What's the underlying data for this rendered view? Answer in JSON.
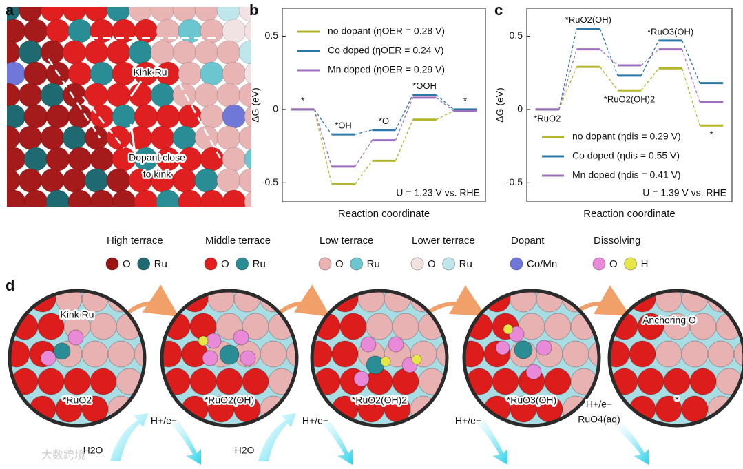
{
  "panel_labels": [
    "a",
    "b",
    "c",
    "d"
  ],
  "panel_a": {
    "kink_label": "Kink Ru",
    "dopant_label": [
      "Dopant close",
      "to kink"
    ]
  },
  "chart_data": [
    {
      "type": "step",
      "ylabel": "ΔG (eV)",
      "xlabel": "Reaction coordinate",
      "categories": [
        "*",
        "*OH",
        "*O",
        "*OOH",
        "*"
      ],
      "annotation": "U = 1.23 V vs. RHE",
      "ylim": [
        -0.63,
        0.69
      ],
      "yticks": [
        -0.5,
        0,
        0.5
      ],
      "legend_position": "upper left",
      "series": [
        {
          "name": "no dopant (ηOER = 0.28 V)",
          "color": "#b3b52b",
          "values": [
            0,
            -0.51,
            -0.35,
            -0.07,
            -0.01
          ]
        },
        {
          "name": "Co doped (ηOER = 0.24 V)",
          "color": "#2b78a6",
          "values": [
            0,
            -0.17,
            -0.14,
            0.1,
            0
          ]
        },
        {
          "name": "Mn doped (ηOER = 0.29 V)",
          "color": "#9d70bf",
          "values": [
            0,
            -0.39,
            -0.21,
            0.08,
            -0.01
          ]
        }
      ]
    },
    {
      "type": "step",
      "ylabel": "ΔG (eV)",
      "xlabel": "Reaction coordinate",
      "categories": [
        "*RuO2",
        "*RuO2(OH)",
        "*RuO2(OH)2",
        "*RuO3(OH)",
        "*"
      ],
      "annotation": "U = 1.39 V vs. RHE",
      "ylim": [
        -0.63,
        0.69
      ],
      "yticks": [
        -0.5,
        0,
        0.5
      ],
      "legend_position": "lower left",
      "series": [
        {
          "name": "no dopant (ηdis = 0.29 V)",
          "color": "#b3b52b",
          "values": [
            0,
            0.29,
            0.13,
            0.28,
            -0.11
          ]
        },
        {
          "name": "Co doped (ηdis = 0.55 V)",
          "color": "#2b78a6",
          "values": [
            0,
            0.55,
            0.23,
            0.47,
            0.18
          ]
        },
        {
          "name": "Mn doped (ηdis = 0.41 V)",
          "color": "#9d70bf",
          "values": [
            0,
            0.41,
            0.3,
            0.41,
            0.05
          ]
        }
      ]
    }
  ],
  "legend_groups": [
    {
      "title": "High terrace",
      "items": [
        {
          "label": "O",
          "color": "#9a1414"
        },
        {
          "label": "Ru",
          "color": "#1e6a70"
        }
      ]
    },
    {
      "title": "Middle terrace",
      "items": [
        {
          "label": "O",
          "color": "#e01e1e"
        },
        {
          "label": "Ru",
          "color": "#2a8c94"
        }
      ]
    },
    {
      "title": "Low terrace",
      "items": [
        {
          "label": "O",
          "color": "#eab2b2"
        },
        {
          "label": "Ru",
          "color": "#6cc6d0"
        }
      ]
    },
    {
      "title": "Lower terrace",
      "items": [
        {
          "label": "O",
          "color": "#f1e1e1"
        },
        {
          "label": "Ru",
          "color": "#bfe6ea"
        }
      ]
    },
    {
      "title": "Dopant",
      "items": [
        {
          "label": "Co/Mn",
          "color": "#6f78d8"
        }
      ]
    },
    {
      "title": "Dissolving",
      "items": [
        {
          "label": "O",
          "color": "#e88ad8"
        },
        {
          "label": "H",
          "color": "#e6e646"
        }
      ]
    }
  ],
  "panel_d": {
    "states": [
      "*RuO2",
      "*RuO2(OH)",
      "*RuO2(OH)2",
      "*RuO3(OH)",
      "*"
    ],
    "site_labels": [
      "Kink Ru",
      "Anchoring O"
    ],
    "reagents": [
      "H2O",
      "H+/e−",
      "H2O",
      "H+/e−",
      "H+/e−",
      "H+/e−",
      "RuO4(aq)"
    ]
  },
  "watermark": "大数跨境"
}
